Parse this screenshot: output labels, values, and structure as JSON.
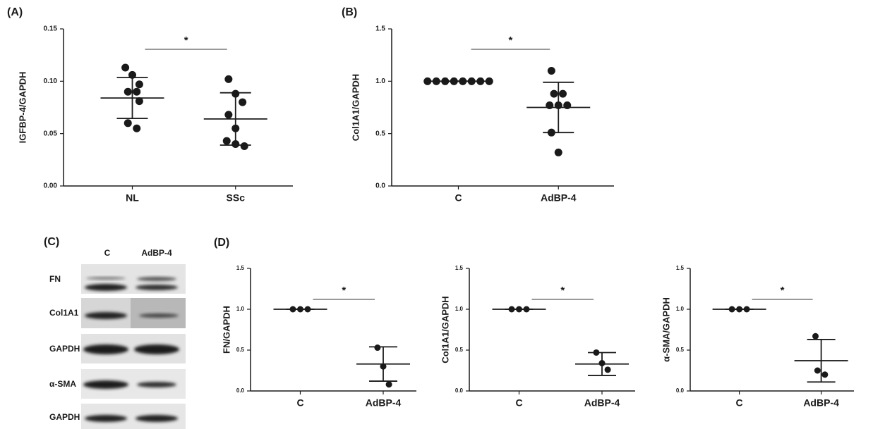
{
  "chart_data": [
    {
      "type": "dot",
      "panel": "(A)",
      "y_label": "IGFBP-4/GAPDH",
      "categories": [
        "NL",
        "SSc"
      ],
      "points": [
        [
          0.113,
          0.106,
          0.097,
          0.09,
          0.09,
          0.081,
          0.06,
          0.055
        ],
        [
          0.102,
          0.088,
          0.08,
          0.068,
          0.055,
          0.043,
          0.04,
          0.038
        ]
      ],
      "means": [
        0.084,
        0.064
      ],
      "errors": [
        0.0195,
        0.025
      ],
      "significance": "*",
      "ylim": [
        0,
        0.15
      ],
      "yticks": [
        {
          "value": 0,
          "label": "0.00"
        },
        0.05,
        {
          "value": 0.1,
          "label": "0.10"
        },
        0.15
      ],
      "color": "#1a1a1a"
    },
    {
      "type": "dot",
      "panel": "(B)",
      "y_label": "Col1A1/GAPDH",
      "categories": [
        "C",
        "AdBP-4"
      ],
      "points": [
        [
          1,
          1,
          1,
          1,
          1,
          1,
          1,
          1
        ],
        [
          1.1,
          0.88,
          0.88,
          0.77,
          0.77,
          0.77,
          0.51,
          0.32
        ]
      ],
      "means": [
        1,
        0.75
      ],
      "errors": [
        0,
        0.24
      ],
      "significance": "*",
      "ylim": [
        0,
        1.5
      ],
      "yticks": [
        {
          "value": 0,
          "label": "0.0"
        },
        0.5,
        {
          "value": 1,
          "label": "1.0"
        },
        1.5
      ],
      "color": "#1a1a1a"
    },
    {
      "type": "dot",
      "panel": "(D)",
      "y_label": "FN/GAPDH",
      "categories": [
        "C",
        "AdBP-4"
      ],
      "points": [
        [
          1,
          1,
          1
        ],
        [
          0.53,
          0.3,
          0.08
        ]
      ],
      "means": [
        1,
        0.33
      ],
      "errors": [
        0,
        0.21
      ],
      "significance": "*",
      "ylim": [
        0,
        1.5
      ],
      "yticks": [
        {
          "value": 0,
          "label": "0.0"
        },
        0.5,
        {
          "value": 1,
          "label": "1.0"
        },
        1.5
      ],
      "color": "#1a1a1a"
    },
    {
      "type": "dot",
      "y_label": "Col1A1/GAPDH",
      "categories": [
        "C",
        "AdBP-4"
      ],
      "points": [
        [
          1,
          1,
          1
        ],
        [
          0.47,
          0.34,
          0.26
        ]
      ],
      "means": [
        1,
        0.33
      ],
      "errors": [
        0,
        0.14
      ],
      "significance": "*",
      "ylim": [
        0,
        1.5
      ],
      "yticks": [
        {
          "value": 0,
          "label": "0.0"
        },
        0.5,
        {
          "value": 1,
          "label": "1.0"
        },
        1.5
      ],
      "color": "#1a1a1a"
    },
    {
      "type": "dot",
      "y_label": "α-SMA/GAPDH",
      "categories": [
        "C",
        "AdBP-4"
      ],
      "points": [
        [
          1,
          1,
          1
        ],
        [
          0.67,
          0.25,
          0.2
        ]
      ],
      "means": [
        1,
        0.37
      ],
      "errors": [
        0,
        0.26
      ],
      "significance": "*",
      "ylim": [
        0,
        1.5
      ],
      "yticks": [
        {
          "value": 0,
          "label": "0.0"
        },
        0.5,
        {
          "value": 1,
          "label": "1.0"
        },
        1.5
      ],
      "color": "#1a1a1a"
    }
  ],
  "blot": {
    "panel": "(C)",
    "columns": [
      "C",
      "AdBP-4"
    ],
    "rows": [
      "FN",
      "Col1A1",
      "GAPDH",
      "α-SMA",
      "GAPDH"
    ]
  }
}
